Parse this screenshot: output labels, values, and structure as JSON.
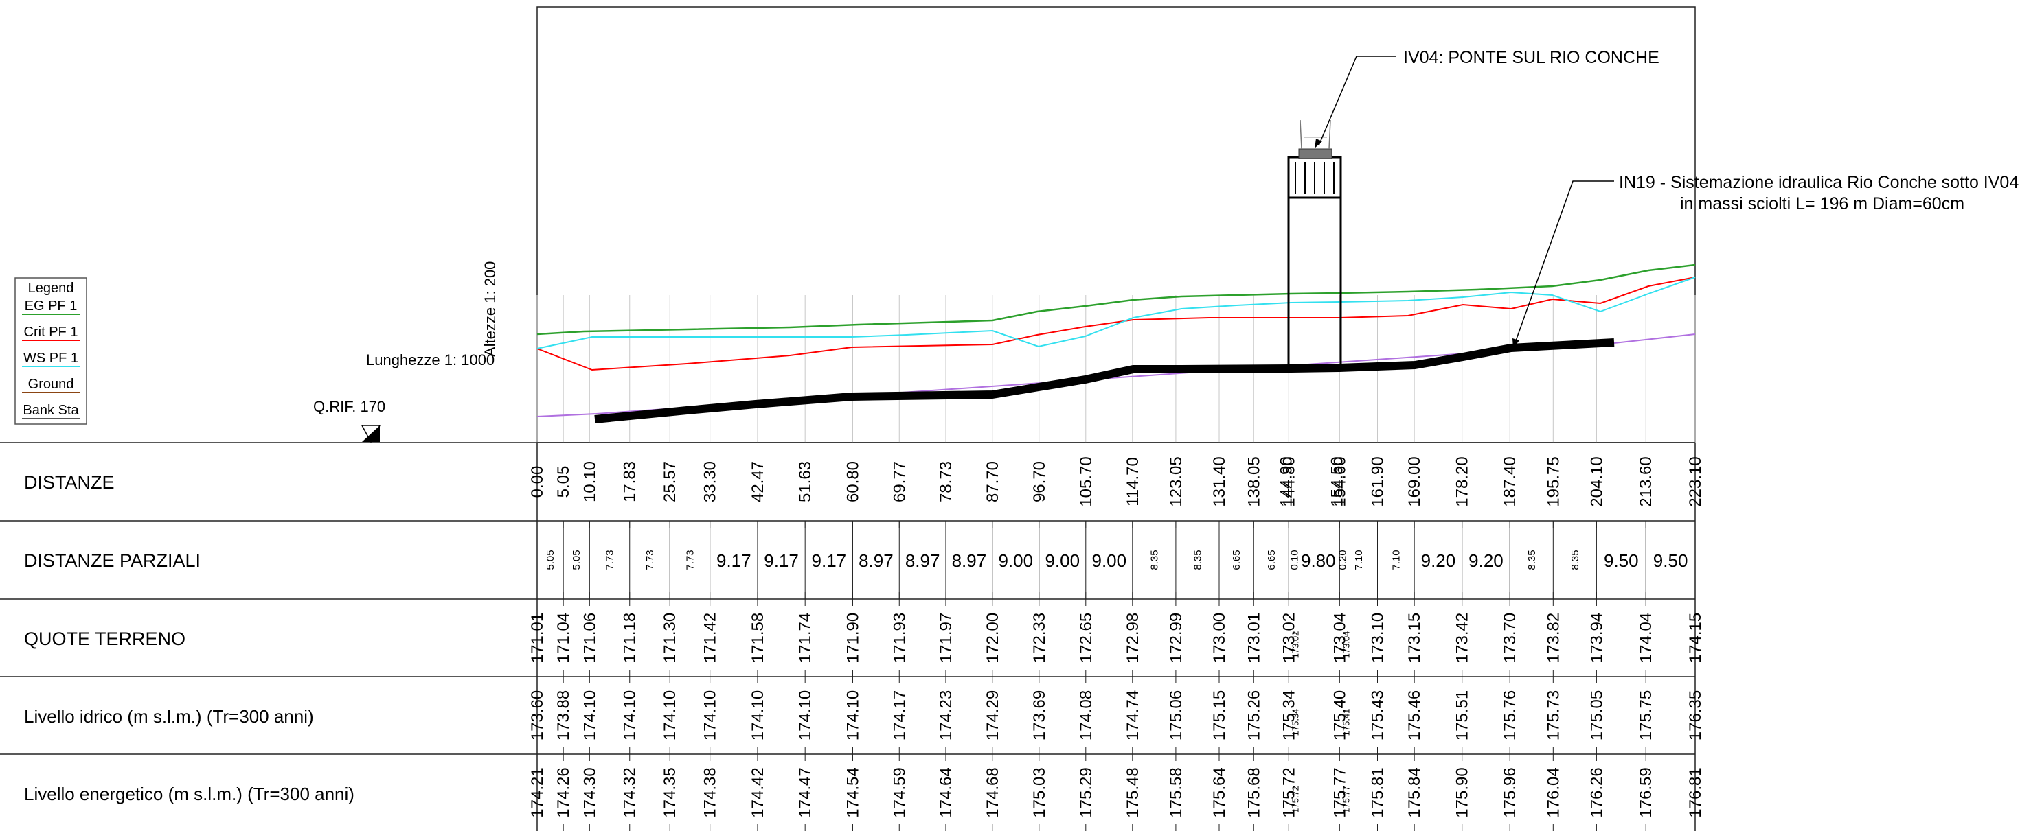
{
  "scales": {
    "vertical": "Altezze 1: 200",
    "horizontal": "Lunghezze 1: 1000",
    "reference": "Q.RIF. 170"
  },
  "legend": {
    "title": "Legend",
    "items": [
      {
        "label": "EG PF 1",
        "color": "#2ca02c"
      },
      {
        "label": "Crit PF 1",
        "color": "#ff0000"
      },
      {
        "label": "WS PF 1",
        "color": "#33e0ef"
      },
      {
        "label": "Ground",
        "color": "#8b4513"
      },
      {
        "label": "Bank Sta",
        "color": "#555555"
      }
    ]
  },
  "annotations": {
    "bridge": "IV04: PONTE SUL RIO CONCHE",
    "work_line1": "IN19 - Sistemazione idraulica Rio Conche sotto IV04",
    "work_line2": "in massi sciolti L= 196 m Diam=60cm"
  },
  "table": {
    "row_labels": [
      "DISTANZE",
      "DISTANZE PARZIALI",
      "QUOTE TERRENO",
      "Livello idrico (m s.l.m.) (Tr=300 anni)",
      "Livello energetico (m s.l.m.) (Tr=300 anni)"
    ],
    "distanze": [
      "0.00",
      "5.05",
      "10.10",
      "17.83",
      "25.57",
      "33.30",
      "42.47",
      "51.63",
      "60.80",
      "69.77",
      "78.73",
      "87.70",
      "96.70",
      "105.70",
      "114.70",
      "123.05",
      "131.40",
      "138.05",
      "144.80",
      "154.60",
      "161.90",
      "169.00",
      "178.20",
      "187.40",
      "195.75",
      "204.10",
      "213.60",
      "223.10"
    ],
    "parziali": [
      "5.05",
      "5.05",
      "7.73",
      "7.73",
      "7.73",
      "9.17",
      "9.17",
      "9.17",
      "8.97",
      "8.97",
      "8.97",
      "9.00",
      "9.00",
      "9.00",
      "8.35",
      "8.35",
      "6.65",
      "6.65",
      "0.10",
      "9.80",
      "0.20",
      "7.10",
      "7.10",
      "9.20",
      "9.20",
      "8.35",
      "8.35",
      "9.50",
      "9.50"
    ],
    "quote_terreno": [
      "171.01",
      "171.04",
      "171.06",
      "171.18",
      "171.30",
      "171.42",
      "171.58",
      "171.74",
      "171.90",
      "171.93",
      "171.97",
      "172.00",
      "172.33",
      "172.65",
      "172.98",
      "172.99",
      "173.00",
      "173.01",
      "173.02",
      "173.04",
      "173.10",
      "173.15",
      "173.42",
      "173.70",
      "173.82",
      "173.94",
      "174.04",
      "174.15"
    ],
    "livello_idrico": [
      "173.60",
      "173.88",
      "174.10",
      "174.10",
      "174.10",
      "174.10",
      "174.10",
      "174.10",
      "174.10",
      "174.17",
      "174.23",
      "174.29",
      "173.69",
      "174.08",
      "174.74",
      "175.06",
      "175.15",
      "175.26",
      "175.34",
      "175.40",
      "175.43",
      "175.46",
      "175.51",
      "175.76",
      "175.73",
      "175.05",
      "175.75",
      "176.35"
    ],
    "livello_energetico": [
      "174.21",
      "174.26",
      "174.30",
      "174.32",
      "174.35",
      "174.38",
      "174.42",
      "174.47",
      "174.54",
      "174.59",
      "174.64",
      "174.68",
      "175.03",
      "175.29",
      "175.48",
      "175.58",
      "175.64",
      "175.68",
      "175.72",
      "175.77",
      "175.81",
      "175.84",
      "175.90",
      "175.96",
      "176.04",
      "176.26",
      "176.59",
      "176.81"
    ],
    "bridge_duplicates": {
      "distanze": [
        "144.90",
        "154.50"
      ],
      "quote_terreno": [
        "173.02",
        "173.04"
      ],
      "livello_idrico": [
        "175.34",
        "175.41"
      ],
      "livello_energetico": [
        "175.72",
        "175.77"
      ]
    }
  }
}
